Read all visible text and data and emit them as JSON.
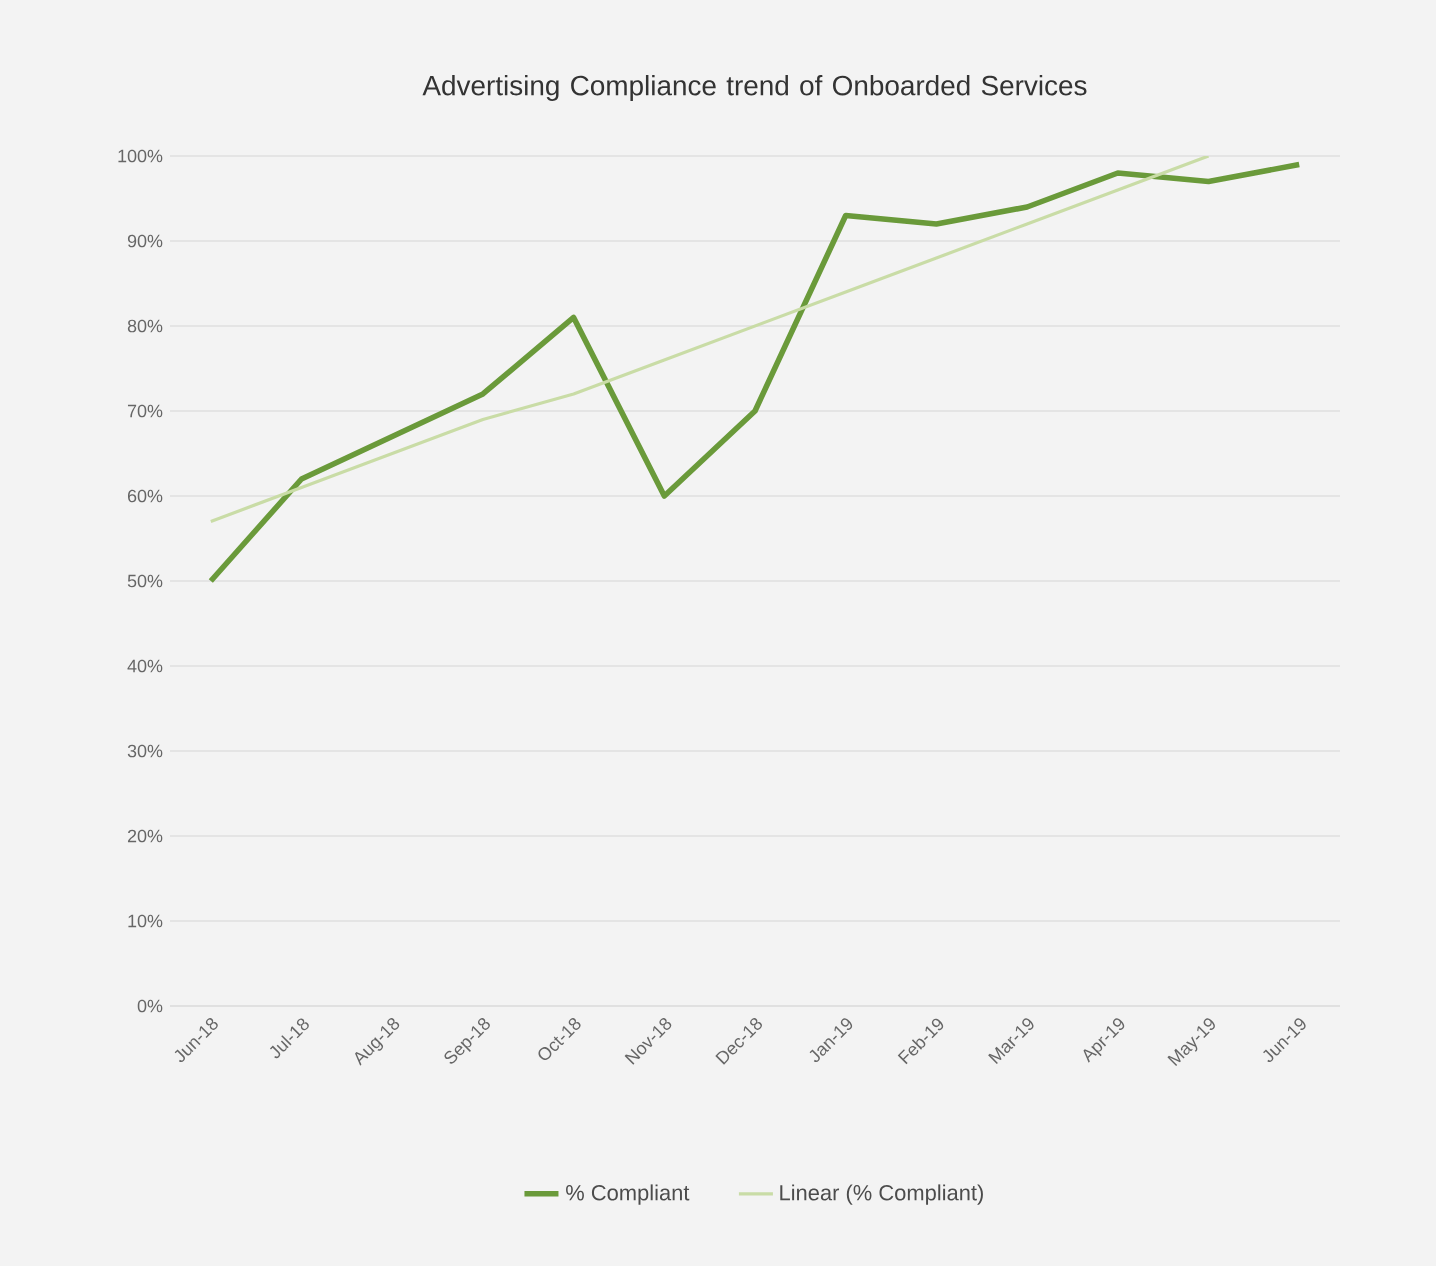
{
  "chart_data": {
    "type": "line",
    "title": "Advertising Compliance trend of Onboarded Services",
    "categories": [
      "Jun-18",
      "Jul-18",
      "Aug-18",
      "Sep-18",
      "Oct-18",
      "Nov-18",
      "Dec-18",
      "Jan-19",
      "Feb-19",
      "Mar-19",
      "Apr-19",
      "May-19",
      "Jun-19"
    ],
    "series": [
      {
        "name": "% Compliant",
        "color": "#6a9a3a",
        "values": [
          50,
          62,
          67,
          72,
          81,
          60,
          70,
          93,
          92,
          94,
          98,
          97,
          99
        ]
      },
      {
        "name": "Linear (% Compliant)",
        "color": "#c9dca6",
        "values": [
          57,
          61,
          65,
          69,
          72,
          76,
          80,
          84,
          88,
          92,
          96,
          100,
          null
        ]
      }
    ],
    "ylim": [
      0,
      100
    ],
    "yticks": [
      {
        "value": 0,
        "label": "0%"
      },
      {
        "value": 10,
        "label": "10%"
      },
      {
        "value": 20,
        "label": "20%"
      },
      {
        "value": 30,
        "label": "30%"
      },
      {
        "value": 40,
        "label": "40%"
      },
      {
        "value": 50,
        "label": "50%"
      },
      {
        "value": 60,
        "label": "60%"
      },
      {
        "value": 70,
        "label": "70%"
      },
      {
        "value": 80,
        "label": "80%"
      },
      {
        "value": 90,
        "label": "90%"
      },
      {
        "value": 100,
        "label": "100%"
      }
    ],
    "grid": "y",
    "legend": "bottom",
    "marker": "none",
    "line_style": "solid"
  }
}
